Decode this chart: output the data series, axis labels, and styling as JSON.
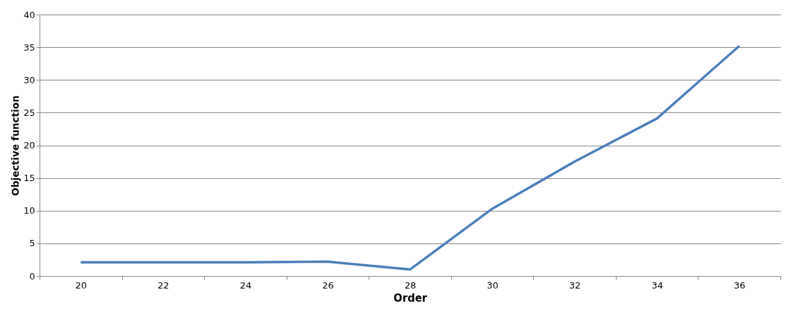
{
  "chart_data": {
    "type": "line",
    "xlabel": "Order",
    "ylabel": "Objective function",
    "categories": [
      "20",
      "22",
      "24",
      "26",
      "28",
      "30",
      "32",
      "34",
      "36"
    ],
    "series": [
      {
        "color": "#4a7ebb",
        "values": [
          2.1,
          2.1,
          2.1,
          2.2,
          1.0,
          10.3,
          17.5,
          24.1,
          35.2
        ]
      }
    ],
    "ylim": [
      0,
      40
    ],
    "yticks": [
      0,
      5,
      10,
      15,
      20,
      25,
      30,
      35,
      40
    ],
    "grid": "y",
    "marker": "none",
    "line_style": "solid"
  }
}
